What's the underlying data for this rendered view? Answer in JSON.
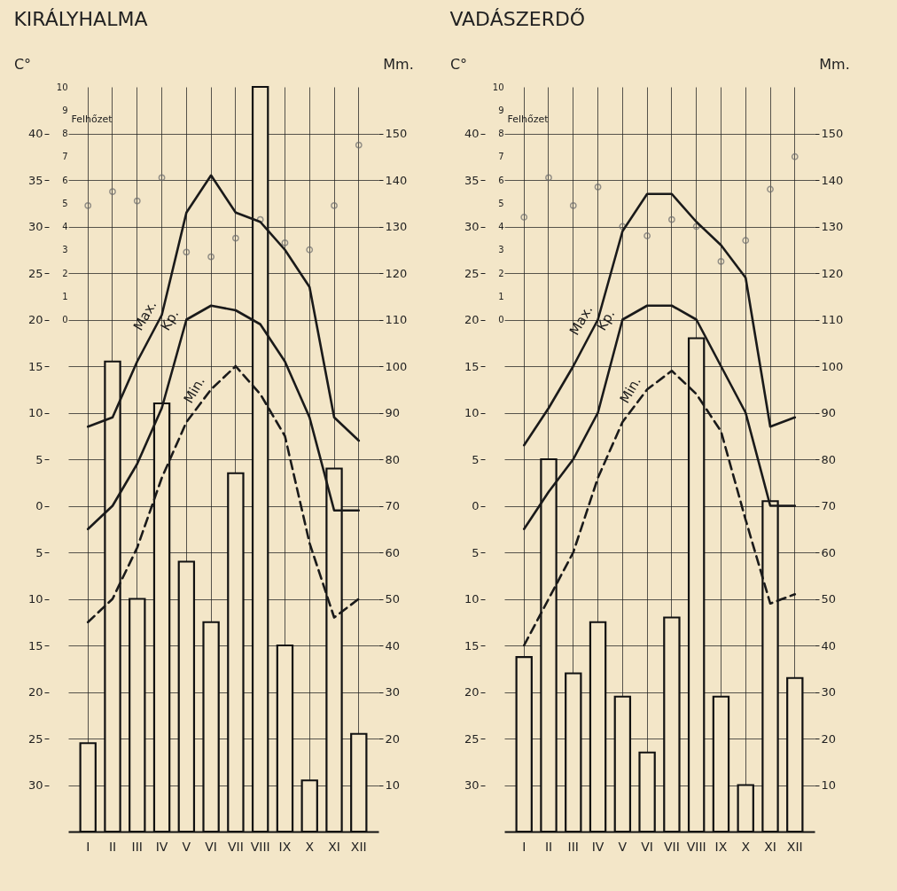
{
  "chart_data": [
    {
      "type": "bar",
      "title": "KIRÁLYHALMA",
      "categories": [
        "I",
        "II",
        "III",
        "IV",
        "V",
        "VI",
        "VII",
        "VIII",
        "IX",
        "X",
        "XI",
        "XII"
      ],
      "ylabel": "C°",
      "y2label": "Mm.",
      "y3label": "Felhőzet",
      "ylim": [
        -35,
        45
      ],
      "yticks": [
        40,
        35,
        30,
        25,
        20,
        15,
        10,
        5,
        0,
        {
          "value": -5,
          "label": "5"
        },
        {
          "value": -10,
          "label": "10"
        },
        {
          "value": -15,
          "label": "15"
        },
        {
          "value": -20,
          "label": "20"
        },
        {
          "value": -25,
          "label": "25"
        },
        {
          "value": -30,
          "label": "30"
        }
      ],
      "y2lim": [
        0,
        160
      ],
      "y2ticks": [
        10,
        20,
        30,
        40,
        50,
        60,
        70,
        80,
        90,
        100,
        110,
        120,
        130,
        140,
        150
      ],
      "y3lim": [
        -22,
        10
      ],
      "y3ticks": [
        0,
        1,
        2,
        3,
        4,
        5,
        6,
        7,
        8,
        9,
        10
      ],
      "grid": true,
      "series": [
        {
          "axis": "y2",
          "color": "#f3e6c8",
          "values": [
            19,
            101,
            50,
            92,
            58,
            45,
            77,
            160,
            40,
            11,
            78,
            21
          ]
        },
        {
          "type": "line",
          "name": "Max.",
          "color": "#1a1a1a",
          "line_style": "solid",
          "values": [
            8.5,
            9.5,
            15.5,
            20.5,
            31.5,
            35.5,
            31.5,
            30.5,
            27.5,
            23.5,
            9.5,
            7
          ]
        },
        {
          "type": "line",
          "name": "Kp.",
          "color": "#1a1a1a",
          "line_style": "solid",
          "values": [
            -2.5,
            0,
            4.5,
            10.5,
            20,
            21.5,
            21,
            19.5,
            15.5,
            9.5,
            -0.5,
            -0.5
          ]
        },
        {
          "type": "line",
          "name": "Min.",
          "color": "#1a1a1a",
          "line_style": "dashed",
          "values": [
            -12.5,
            -10,
            -4.5,
            3,
            9,
            12.5,
            15,
            12,
            7.5,
            -4,
            -12,
            -10
          ]
        },
        {
          "type": "scatter",
          "axis": "y3",
          "marker": "circle",
          "color": "#6b6b6b",
          "values": [
            4.9,
            5.5,
            5.1,
            6.1,
            2.9,
            2.7,
            3.5,
            4.3,
            3.3,
            3,
            4.9,
            7.5
          ]
        }
      ]
    },
    {
      "type": "bar",
      "title": "VADÁSZERDŐ",
      "categories": [
        "I",
        "II",
        "III",
        "IV",
        "V",
        "VI",
        "VII",
        "VIII",
        "IX",
        "X",
        "XI",
        "XII"
      ],
      "ylabel": "C°",
      "y2label": "Mm.",
      "y3label": "Felhőzet",
      "ylim": [
        -35,
        45
      ],
      "yticks": [
        40,
        35,
        30,
        25,
        20,
        15,
        10,
        5,
        0,
        {
          "value": -5,
          "label": "5"
        },
        {
          "value": -10,
          "label": "10"
        },
        {
          "value": -15,
          "label": "15"
        },
        {
          "value": -20,
          "label": "20"
        },
        {
          "value": -25,
          "label": "25"
        },
        {
          "value": -30,
          "label": "30"
        }
      ],
      "y2lim": [
        0,
        160
      ],
      "y2ticks": [
        10,
        20,
        30,
        40,
        50,
        60,
        70,
        80,
        90,
        100,
        110,
        120,
        130,
        140,
        150
      ],
      "y3lim": [
        -22,
        10
      ],
      "y3ticks": [
        0,
        1,
        2,
        3,
        4,
        5,
        6,
        7,
        8,
        9,
        10
      ],
      "grid": true,
      "series": [
        {
          "axis": "y2",
          "color": "#f3e6c8",
          "values": [
            37.5,
            80,
            34,
            45,
            29,
            17,
            46,
            106,
            29,
            10,
            71,
            33
          ]
        },
        {
          "type": "line",
          "name": "Max.",
          "color": "#1a1a1a",
          "line_style": "solid",
          "values": [
            6.5,
            10.5,
            15,
            20,
            29.5,
            33.5,
            33.5,
            30.5,
            28,
            24.5,
            8.5,
            9.5
          ]
        },
        {
          "type": "line",
          "name": "Kp.",
          "color": "#1a1a1a",
          "line_style": "solid",
          "values": [
            -2.5,
            1.5,
            5,
            10,
            20,
            21.5,
            21.5,
            20,
            15,
            10,
            0,
            0
          ]
        },
        {
          "type": "line",
          "name": "Min.",
          "color": "#1a1a1a",
          "line_style": "dashed",
          "values": [
            -15,
            -10,
            -5,
            3,
            9,
            12.5,
            14.5,
            12,
            8,
            -1.5,
            -10.5,
            -9.5
          ]
        },
        {
          "type": "scatter",
          "axis": "y3",
          "marker": "circle",
          "color": "#6b6b6b",
          "values": [
            4.4,
            6.1,
            4.9,
            5.7,
            4,
            3.6,
            4.3,
            4,
            2.5,
            3.4,
            5.6,
            7
          ]
        }
      ]
    }
  ]
}
